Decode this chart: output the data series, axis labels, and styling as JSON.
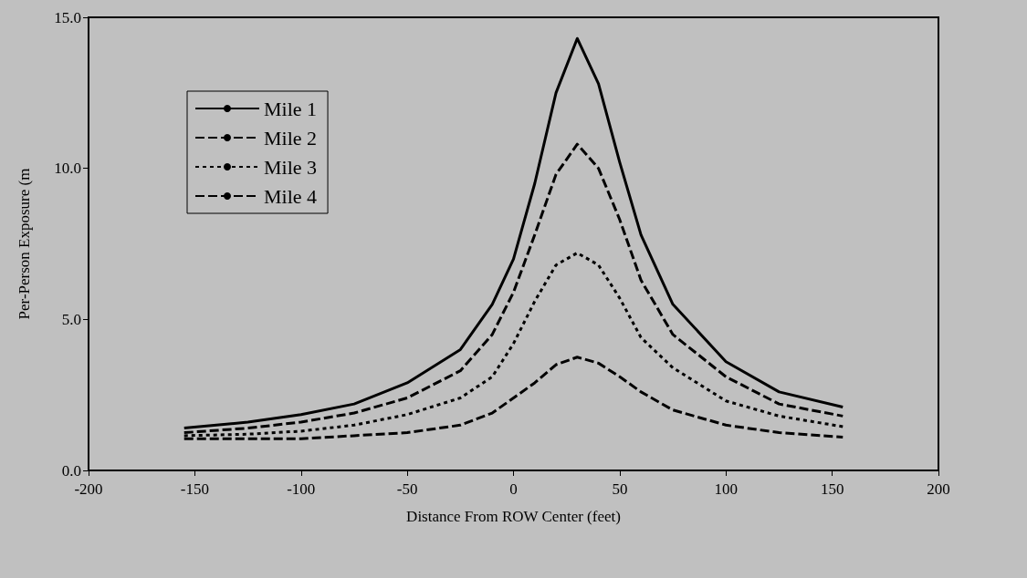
{
  "chart_data": {
    "type": "line",
    "xlabel": "Distance From ROW Center (feet)",
    "ylabel": "Per-Person Exposure (m",
    "x": [
      -155,
      -125,
      -100,
      -75,
      -50,
      -25,
      -10,
      0,
      10,
      20,
      30,
      40,
      50,
      60,
      75,
      100,
      125,
      155
    ],
    "series": [
      {
        "name": "Mile 1",
        "color": "#000000",
        "line_style": "solid",
        "values": [
          1.4,
          1.6,
          1.85,
          2.2,
          2.9,
          4.0,
          5.5,
          7.0,
          9.5,
          12.5,
          14.3,
          12.8,
          10.2,
          7.8,
          5.5,
          3.6,
          2.6,
          2.1
        ]
      },
      {
        "name": "Mile 2",
        "color": "#000000",
        "line_style": "dashed",
        "values": [
          1.25,
          1.4,
          1.6,
          1.9,
          2.4,
          3.3,
          4.5,
          5.9,
          7.8,
          9.8,
          10.8,
          10.0,
          8.3,
          6.3,
          4.5,
          3.1,
          2.2,
          1.8
        ]
      },
      {
        "name": "Mile 3",
        "color": "#000000",
        "line_style": "dotted",
        "values": [
          1.15,
          1.2,
          1.3,
          1.5,
          1.85,
          2.4,
          3.1,
          4.2,
          5.6,
          6.8,
          7.2,
          6.8,
          5.7,
          4.4,
          3.4,
          2.3,
          1.8,
          1.45
        ]
      },
      {
        "name": "Mile 4",
        "color": "#000000",
        "line_style": "dashed",
        "values": [
          1.05,
          1.05,
          1.05,
          1.15,
          1.25,
          1.5,
          1.9,
          2.4,
          2.9,
          3.5,
          3.75,
          3.55,
          3.1,
          2.6,
          2.0,
          1.5,
          1.25,
          1.1
        ]
      }
    ],
    "xlim": [
      -200,
      200
    ],
    "xticks": [
      -200,
      -150,
      -100,
      -50,
      0,
      50,
      100,
      150,
      200
    ],
    "ylim": [
      0,
      15
    ],
    "yticks": [
      {
        "value": 0,
        "label": "0.0"
      },
      {
        "value": 5,
        "label": "5.0"
      },
      {
        "value": 10,
        "label": "10.0"
      },
      {
        "value": 15,
        "label": "15.0"
      }
    ],
    "grid": false,
    "legend": "top left",
    "marker": "none"
  }
}
